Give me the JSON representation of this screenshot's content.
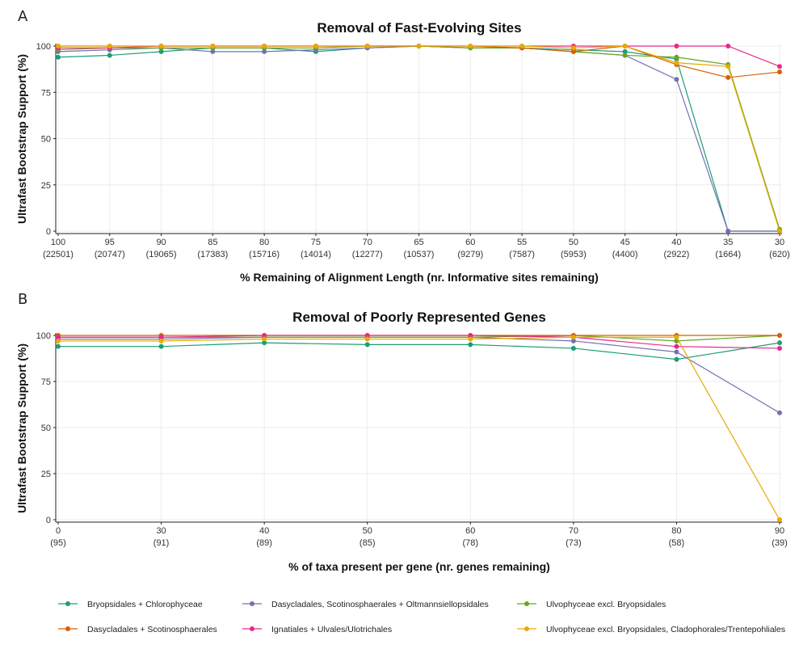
{
  "chart_data": [
    {
      "panel": "A",
      "type": "line",
      "title": "Removal of Fast-Evolving Sites",
      "xlabel": "% Remaining of Alignment Length (nr. Informative sites remaining)",
      "ylabel": "Ultrafast Bootstrap Support (%)",
      "categories": [
        "100",
        "95",
        "90",
        "85",
        "80",
        "75",
        "70",
        "65",
        "60",
        "55",
        "50",
        "45",
        "40",
        "35",
        "30"
      ],
      "sublabels": [
        "(22501)",
        "(20747)",
        "(19065)",
        "(17383)",
        "(15716)",
        "(14014)",
        "(12277)",
        "(10537)",
        "(9279)",
        "(7587)",
        "(5953)",
        "(4400)",
        "(2922)",
        "(1664)",
        "(620)"
      ],
      "yticks": [
        "0",
        "25",
        "50",
        "75",
        "100"
      ],
      "ylim": [
        0,
        100
      ],
      "grid": true,
      "series": [
        {
          "name": "Bryopsidales + Chlorophyceae",
          "color": "#1b9e77",
          "values": [
            94,
            95,
            97,
            99,
            99,
            97,
            99,
            100,
            99,
            99,
            98,
            97,
            93,
            0,
            0
          ]
        },
        {
          "name": "Dasycladales, Scotinosphaerales + Oltmannsiellopsidales",
          "color": "#7570b3",
          "values": [
            97,
            98,
            99,
            97,
            97,
            98,
            99,
            100,
            99,
            99,
            97,
            95,
            82,
            0,
            0
          ]
        },
        {
          "name": "Ulvophyceae excl. Bryopsidales",
          "color": "#66a61e",
          "values": [
            98,
            99,
            99,
            99,
            99,
            99,
            100,
            100,
            99,
            99,
            97,
            95,
            94,
            90,
            1
          ]
        },
        {
          "name": "Dasycladales + Scotinosphaerales",
          "color": "#d95f02",
          "values": [
            100,
            100,
            100,
            100,
            100,
            100,
            100,
            100,
            100,
            99,
            97,
            100,
            90,
            83,
            86
          ]
        },
        {
          "name": "Ignatiales + Ulvales/Ulotrichales",
          "color": "#e7298a",
          "values": [
            99,
            99,
            100,
            100,
            100,
            100,
            100,
            100,
            100,
            100,
            100,
            100,
            100,
            100,
            89
          ]
        },
        {
          "name": "Ulvophyceae excl. Bryopsidales, Cladophorales/Trentepohliales",
          "color": "#e6ab02",
          "values": [
            100,
            100,
            100,
            100,
            100,
            100,
            100,
            100,
            100,
            100,
            99,
            100,
            91,
            89,
            0
          ]
        }
      ]
    },
    {
      "panel": "B",
      "type": "line",
      "title": "Removal of Poorly Represented Genes",
      "xlabel": "% of taxa present per gene (nr. genes remaining)",
      "ylabel": "Ultrafast Bootstrap Support (%)",
      "categories": [
        "0",
        "30",
        "40",
        "50",
        "60",
        "70",
        "80",
        "90"
      ],
      "sublabels": [
        "(95)",
        "(91)",
        "(89)",
        "(85)",
        "(78)",
        "(73)",
        "(58)",
        "(39)"
      ],
      "yticks": [
        "0",
        "25",
        "50",
        "75",
        "100"
      ],
      "ylim": [
        0,
        100
      ],
      "grid": true,
      "series": [
        {
          "name": "Bryopsidales + Chlorophyceae",
          "color": "#1b9e77",
          "values": [
            94,
            94,
            96,
            95,
            95,
            93,
            87,
            96
          ]
        },
        {
          "name": "Dasycladales, Scotinosphaerales + Oltmannsiellopsidales",
          "color": "#7570b3",
          "values": [
            98,
            98,
            99,
            99,
            99,
            97,
            91,
            58
          ]
        },
        {
          "name": "Ulvophyceae excl. Bryopsidales",
          "color": "#66a61e",
          "values": [
            99,
            99,
            99,
            99,
            99,
            100,
            97,
            100
          ]
        },
        {
          "name": "Dasycladales + Scotinosphaerales",
          "color": "#d95f02",
          "values": [
            100,
            100,
            100,
            100,
            100,
            100,
            100,
            100
          ]
        },
        {
          "name": "Ignatiales + Ulvales/Ulotrichales",
          "color": "#e7298a",
          "values": [
            99,
            99,
            100,
            100,
            100,
            99,
            94,
            93
          ]
        },
        {
          "name": "Ulvophyceae excl. Bryopsidales, Cladophorales/Trentepohliales",
          "color": "#e6ab02",
          "values": [
            97,
            97,
            98,
            98,
            98,
            99,
            99,
            0
          ]
        }
      ]
    }
  ],
  "legend": {
    "position": "bottom",
    "items": [
      {
        "name": "Bryopsidales + Chlorophyceae",
        "color": "#1b9e77"
      },
      {
        "name": "Dasycladales, Scotinosphaerales + Oltmannsiellopsidales",
        "color": "#7570b3"
      },
      {
        "name": "Ulvophyceae excl. Bryopsidales",
        "color": "#66a61e"
      },
      {
        "name": "Dasycladales + Scotinosphaerales",
        "color": "#d95f02"
      },
      {
        "name": "Ignatiales + Ulvales/Ulotrichales",
        "color": "#e7298a"
      },
      {
        "name": "Ulvophyceae excl. Bryopsidales, Cladophorales/Trentepohliales",
        "color": "#e6ab02"
      }
    ]
  }
}
